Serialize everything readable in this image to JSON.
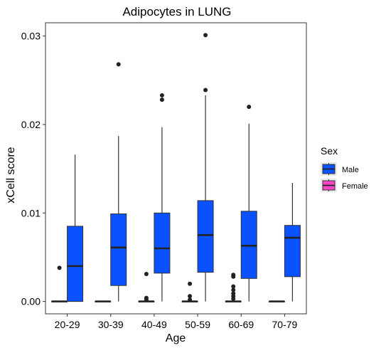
{
  "chart_data": {
    "type": "boxplot",
    "title": "Adipocytes in LUNG",
    "xlabel": "Age",
    "ylabel": "xCell score",
    "ylim": [
      -0.0014,
      0.0315
    ],
    "yticks": [
      0.0,
      0.01,
      0.02,
      0.03
    ],
    "ytick_labels": [
      "0.00",
      "0.01",
      "0.02",
      "0.03"
    ],
    "grid": false,
    "legend": {
      "title": "Sex",
      "position": "right",
      "entries": [
        {
          "name": "Male",
          "color": "#0A52FF"
        },
        {
          "name": "Female",
          "color": "#FF44CC"
        }
      ]
    },
    "categories": [
      "20-29",
      "30-39",
      "40-49",
      "50-59",
      "60-69",
      "70-79"
    ],
    "series": [
      {
        "name": "Female",
        "color": "#FF44CC",
        "boxes": [
          {
            "q1": 0.0,
            "median": 0.0,
            "q3": 0.0,
            "whisker_low": 0.0,
            "whisker_high": 0.0,
            "outliers": [
              0.0038
            ]
          },
          {
            "q1": 0.0,
            "median": 0.0,
            "q3": 0.0,
            "whisker_low": 0.0,
            "whisker_high": 0.0,
            "outliers": []
          },
          {
            "q1": 0.0,
            "median": 0.0,
            "q3": 0.0,
            "whisker_low": 0.0,
            "whisker_high": 0.0,
            "outliers": [
              0.0031,
              0.0004,
              0.0002
            ]
          },
          {
            "q1": 0.0,
            "median": 0.0,
            "q3": 0.0,
            "whisker_low": 0.0,
            "whisker_high": 0.0,
            "outliers": [
              0.002,
              0.0006,
              0.0002
            ]
          },
          {
            "q1": 0.0,
            "median": 0.0,
            "q3": 0.0,
            "whisker_low": 0.0,
            "whisker_high": 0.0,
            "outliers": [
              0.003,
              0.0028,
              0.0017,
              0.0013,
              0.0009,
              0.0006,
              0.0003
            ]
          },
          {
            "q1": 0.0,
            "median": 0.0,
            "q3": 0.0,
            "whisker_low": 0.0,
            "whisker_high": 0.0,
            "outliers": []
          }
        ]
      },
      {
        "name": "Male",
        "color": "#0A52FF",
        "boxes": [
          {
            "q1": 0.0,
            "median": 0.004,
            "q3": 0.0085,
            "whisker_low": 0.0,
            "whisker_high": 0.0166,
            "outliers": []
          },
          {
            "q1": 0.0018,
            "median": 0.0061,
            "q3": 0.0099,
            "whisker_low": 0.0,
            "whisker_high": 0.0187,
            "outliers": [
              0.0268
            ]
          },
          {
            "q1": 0.0032,
            "median": 0.006,
            "q3": 0.01,
            "whisker_low": 0.0,
            "whisker_high": 0.0197,
            "outliers": [
              0.0233,
              0.0228
            ]
          },
          {
            "q1": 0.0033,
            "median": 0.0075,
            "q3": 0.0114,
            "whisker_low": 0.0,
            "whisker_high": 0.0233,
            "outliers": [
              0.0301,
              0.0239
            ]
          },
          {
            "q1": 0.0026,
            "median": 0.0063,
            "q3": 0.0102,
            "whisker_low": 0.0,
            "whisker_high": 0.0201,
            "outliers": [
              0.022
            ]
          },
          {
            "q1": 0.0028,
            "median": 0.0072,
            "q3": 0.0086,
            "whisker_low": 0.0,
            "whisker_high": 0.0134,
            "outliers": []
          }
        ]
      }
    ]
  }
}
